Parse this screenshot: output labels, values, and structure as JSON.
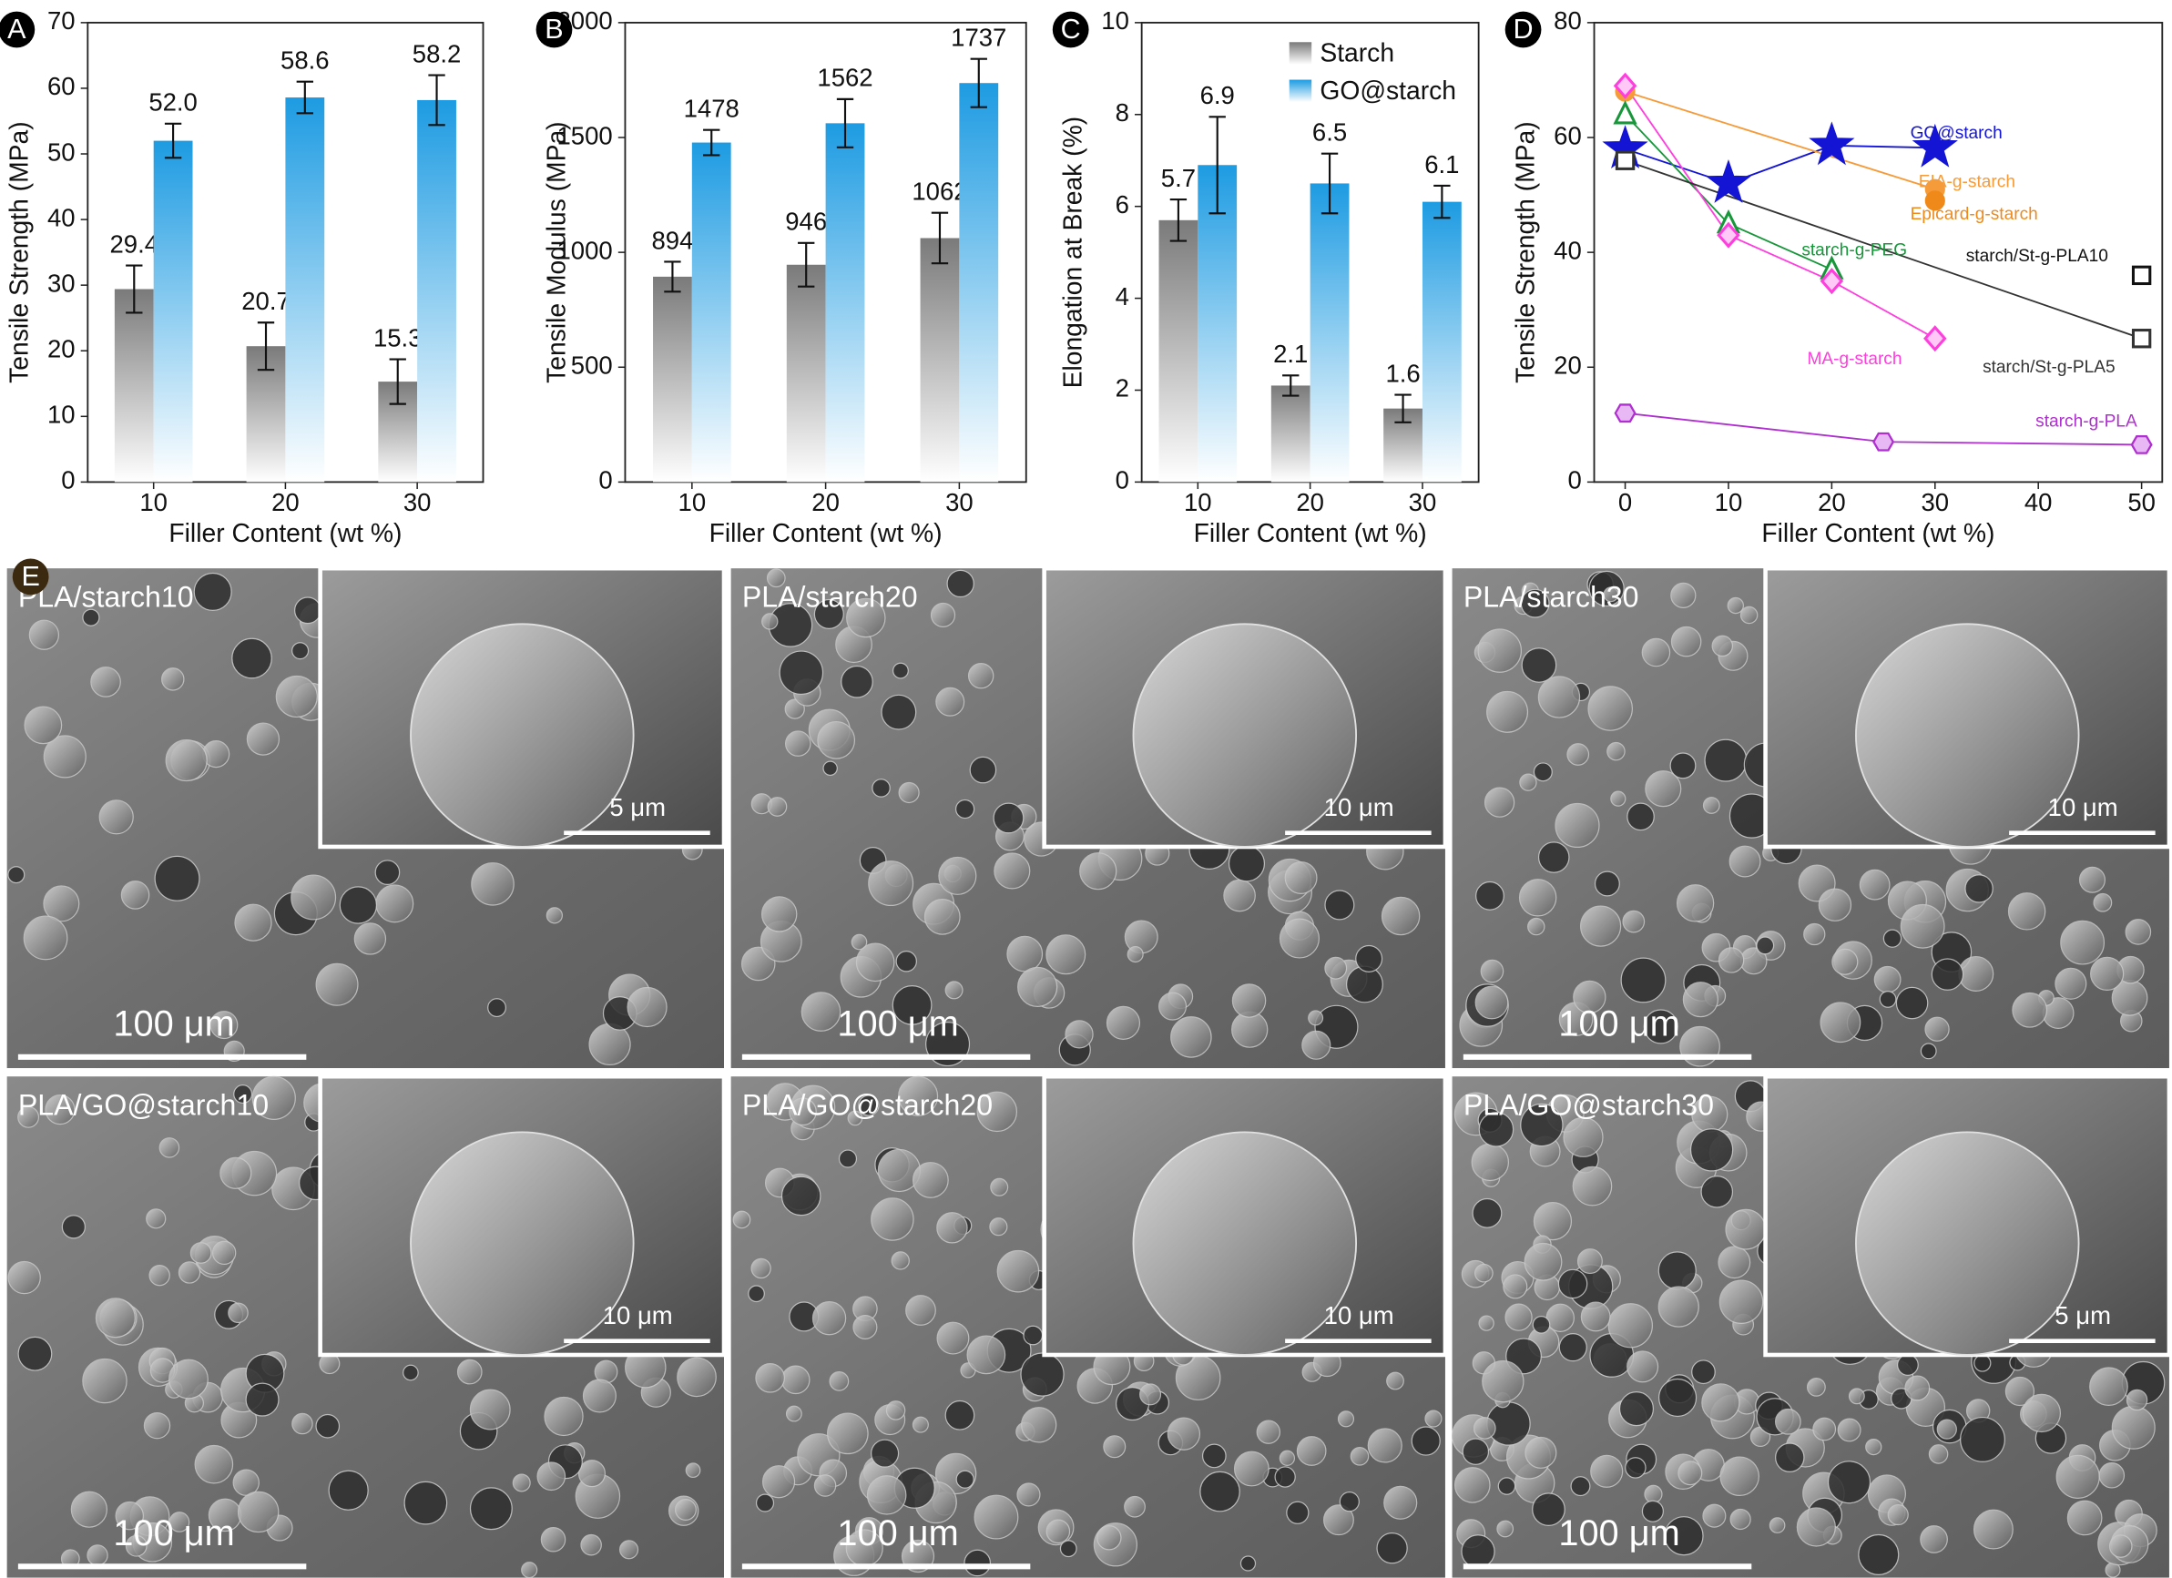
{
  "chart_data": [
    {
      "type": "bar",
      "panel": "A",
      "ylabel": "Tensile Strength (MPa)",
      "xlabel": "Filler Content (wt %)",
      "categories": [
        "10",
        "20",
        "30"
      ],
      "series": [
        {
          "name": "Starch",
          "color": "#7a7a7a",
          "values": [
            29.4,
            20.7,
            15.3
          ],
          "errors": [
            3.6,
            3.6,
            3.4
          ]
        },
        {
          "name": "GO@starch",
          "color": "#1d9be2",
          "values": [
            52.0,
            58.6,
            58.2
          ],
          "value_labels": [
            "52.0",
            "58.6",
            "58.2"
          ],
          "errors": [
            2.6,
            2.4,
            3.8
          ]
        }
      ],
      "ylim": [
        0,
        70
      ],
      "yticks": [
        0,
        10,
        20,
        30,
        40,
        50,
        60,
        70
      ]
    },
    {
      "type": "bar",
      "panel": "B",
      "ylabel": "Tensile Modulus (MPa)",
      "xlabel": "Filler Content (wt %)",
      "categories": [
        "10",
        "20",
        "30"
      ],
      "series": [
        {
          "name": "Starch",
          "color": "#7a7a7a",
          "values": [
            894,
            946,
            1062
          ],
          "errors": [
            65,
            95,
            110
          ]
        },
        {
          "name": "GO@starch",
          "color": "#1d9be2",
          "values": [
            1478,
            1562,
            1737
          ],
          "errors": [
            55,
            105,
            105
          ]
        }
      ],
      "ylim": [
        0,
        2000
      ],
      "yticks": [
        0,
        500,
        1000,
        1500,
        2000
      ]
    },
    {
      "type": "bar",
      "panel": "C",
      "ylabel": "Elongation at  Break (%)",
      "xlabel": "Filler Content (wt %)",
      "categories": [
        "10",
        "20",
        "30"
      ],
      "series": [
        {
          "name": "Starch",
          "color": "#7a7a7a",
          "values": [
            5.7,
            2.1,
            1.6
          ],
          "errors": [
            0.45,
            0.22,
            0.3
          ]
        },
        {
          "name": "GO@starch",
          "color": "#1d9be2",
          "values": [
            6.9,
            6.5,
            6.1
          ],
          "errors": [
            1.05,
            0.65,
            0.35
          ]
        }
      ],
      "ylim": [
        0,
        10
      ],
      "yticks": [
        0,
        2,
        4,
        6,
        8,
        10
      ],
      "legend": "upper right"
    },
    {
      "type": "scatter",
      "panel": "D",
      "ylabel": "Tensile Strength (MPa)",
      "xlabel": "Filler Content (wt %)",
      "legend": "inline",
      "series": [
        {
          "name": "GO@starch",
          "color": "#1414d4",
          "marker": "star",
          "x": [
            0,
            10,
            20,
            30
          ],
          "values": [
            58,
            52,
            58.6,
            58.2
          ]
        },
        {
          "name": "EIA-g-starch",
          "color": "#f59b3a",
          "marker": "circle",
          "x": [
            0,
            30
          ],
          "values": [
            68,
            51
          ]
        },
        {
          "name": "Epicard-g-starch",
          "color": "#ef8a1a",
          "marker": "circle",
          "x": [
            30
          ],
          "values": [
            49
          ]
        },
        {
          "name": "starch-g-PEG",
          "color": "#17963a",
          "marker": "triangle",
          "x": [
            0,
            10,
            20
          ],
          "values": [
            64,
            45,
            37
          ]
        },
        {
          "name": "MA-g-starch",
          "color": "#ff3ede",
          "marker": "diamond",
          "x": [
            0,
            10,
            20,
            30
          ],
          "values": [
            69,
            43,
            35,
            25
          ]
        },
        {
          "name": "starch/St-g-PLA10",
          "color": "#111111",
          "marker": "square",
          "x": [
            50
          ],
          "values": [
            36
          ]
        },
        {
          "name": "starch/St-g-PLA5",
          "color": "#333333",
          "marker": "square",
          "x": [
            0,
            50
          ],
          "values": [
            56,
            25
          ]
        },
        {
          "name": "starch-g-PLA",
          "color": "#b02fd0",
          "marker": "hexagon",
          "x": [
            0,
            25,
            50
          ],
          "values": [
            12,
            7,
            6.5
          ]
        }
      ],
      "xlim": [
        -3,
        52
      ],
      "xticks": [
        0,
        10,
        20,
        30,
        40,
        50
      ],
      "ylim": [
        0,
        80
      ],
      "yticks": [
        0,
        20,
        40,
        60,
        80
      ]
    }
  ],
  "micrographs": {
    "panel": "E",
    "images": [
      {
        "label": "PLA/starch10",
        "inset_scale": "5 μm",
        "scale": "100 μm"
      },
      {
        "label": "PLA/starch20",
        "inset_scale": "10 μm",
        "scale": "100 μm"
      },
      {
        "label": "PLA/starch30",
        "inset_scale": "10 μm",
        "scale": "100 μm"
      },
      {
        "label": "PLA/GO@starch10",
        "inset_scale": "10 μm",
        "scale": "100 μm"
      },
      {
        "label": "PLA/GO@starch20",
        "inset_scale": "10 μm",
        "scale": "100 μm"
      },
      {
        "label": "PLA/GO@starch30",
        "inset_scale": "5 μm",
        "scale": "100 μm"
      }
    ]
  }
}
